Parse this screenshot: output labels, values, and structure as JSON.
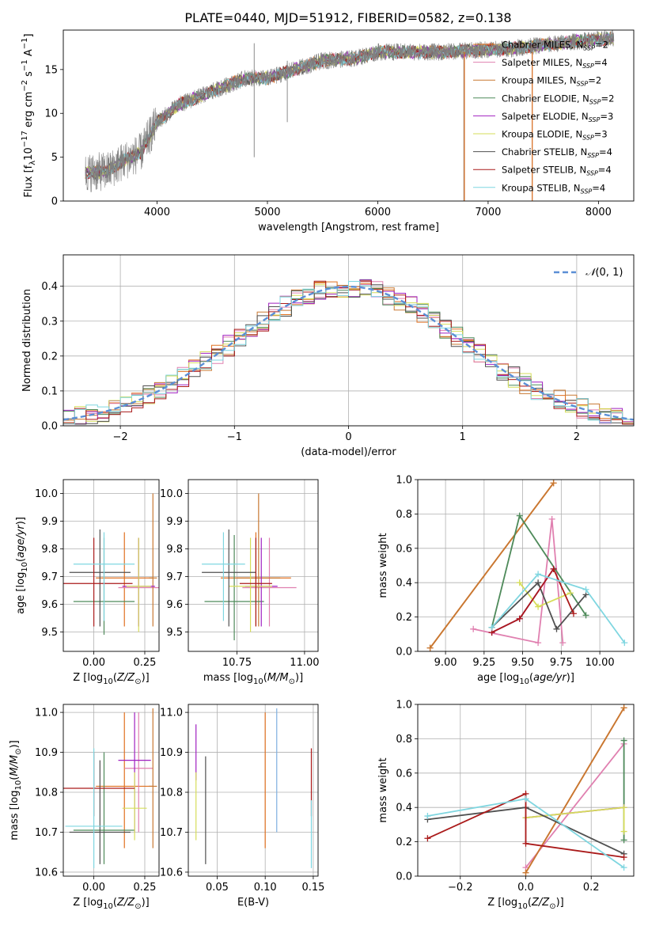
{
  "figure_title": "PLATE=0440, MJD=51912, FIBERID=0582, z=0.138",
  "colors": {
    "grey": "#808080",
    "orange": "#e07020",
    "pink": "#e080b0",
    "copper": "#c87832",
    "green": "#4e8a5a",
    "purple": "#a020c0",
    "yellow": "#d6dd5a",
    "dark": "#505050",
    "red": "#aa1a1a",
    "cyan": "#7fd6e0",
    "gaussian": "#5b8fd6",
    "grid": "#b0b0b0"
  },
  "legend_models": [
    {
      "label": "Chabrier MILES, N",
      "sub": "SSP",
      "tail": "=2",
      "color": "#e07020"
    },
    {
      "label": "Salpeter MILES, N",
      "sub": "SSP",
      "tail": "=4",
      "color": "#e080b0"
    },
    {
      "label": "Kroupa MILES, N",
      "sub": "SSP",
      "tail": "=2",
      "color": "#c87832"
    },
    {
      "label": "Chabrier ELODIE, N",
      "sub": "SSP",
      "tail": "=2",
      "color": "#4e8a5a"
    },
    {
      "label": "Salpeter ELODIE, N",
      "sub": "SSP",
      "tail": "=3",
      "color": "#a020c0"
    },
    {
      "label": "Kroupa ELODIE, N",
      "sub": "SSP",
      "tail": "=3",
      "color": "#d6dd5a"
    },
    {
      "label": "Chabrier STELIB, N",
      "sub": "SSP",
      "tail": "=4",
      "color": "#505050"
    },
    {
      "label": "Salpeter STELIB, N",
      "sub": "SSP",
      "tail": "=4",
      "color": "#aa1a1a"
    },
    {
      "label": "Kroupa STELIB, N",
      "sub": "SSP",
      "tail": "=4",
      "color": "#7fd6e0"
    }
  ],
  "chart_data": [
    {
      "id": "spectrum",
      "type": "line",
      "xlabel": "wavelength [Angstrom, rest frame]",
      "ylabel_main": "Flux [f",
      "ylabel_sub": "λ",
      "ylabel_mid": "10",
      "ylabel_sup1": "−17",
      "ylabel_tail": " erg cm",
      "ylabel_sup2": "−2",
      "ylabel_tail2": " s",
      "ylabel_sup3": "−1",
      "ylabel_tail3": " A",
      "ylabel_sup4": "−1",
      "ylabel_end": "]",
      "xlim": [
        3150,
        8320
      ],
      "ylim": [
        0,
        19.5
      ],
      "xticks": [
        4000,
        5000,
        6000,
        7000,
        8000
      ],
      "yticks": [
        0,
        5,
        10,
        15
      ],
      "data_range": [
        3350,
        8140
      ],
      "continuum": [
        [
          3350,
          3.2
        ],
        [
          3550,
          3.4
        ],
        [
          3700,
          4.6
        ],
        [
          3850,
          5.5
        ],
        [
          4000,
          9.0
        ],
        [
          4200,
          11.0
        ],
        [
          4500,
          12.5
        ],
        [
          4800,
          14.0
        ],
        [
          5000,
          14.0
        ],
        [
          5200,
          14.8
        ],
        [
          5500,
          16.0
        ],
        [
          5800,
          16.3
        ],
        [
          6000,
          17.0
        ],
        [
          6300,
          17.0
        ],
        [
          6600,
          17.0
        ],
        [
          6900,
          17.2
        ],
        [
          7200,
          17.4
        ],
        [
          7500,
          17.8
        ],
        [
          7800,
          18.2
        ],
        [
          8140,
          18.6
        ]
      ],
      "vertical_spikes": [
        [
          4880,
          5,
          18
        ],
        [
          5180,
          9,
          16
        ],
        [
          6780,
          0,
          17
        ],
        [
          7400,
          0,
          17
        ]
      ],
      "legend_position": "upper-right"
    },
    {
      "id": "residuals",
      "type": "histogram",
      "xlabel": "(data-model)/error",
      "ylabel": "Normed distribution",
      "xlim": [
        -2.5,
        2.5
      ],
      "ylim": [
        0,
        0.49
      ],
      "xticks": [
        -2,
        -1,
        0,
        1,
        2
      ],
      "yticks": [
        0.0,
        0.1,
        0.2,
        0.3,
        0.4
      ],
      "bin_width": 0.1,
      "gaussian_label": "N(0, 1)",
      "gaussian_italic": "𝒩",
      "gaussian_tail": "(0, 1)",
      "legend_position": "upper-right",
      "grid": true
    },
    {
      "id": "z_age",
      "type": "errorbar",
      "xlabel_main": "Z [log",
      "xlabel_sub": "10",
      "xlabel_tail": "(Z/Z",
      "xlabel_sub2": "⊙",
      "xlabel_end": ")]",
      "ylabel_main": "age  [log",
      "ylabel_sub": "10",
      "ylabel_tail": "(age/yr)]",
      "xlim": [
        -0.15,
        0.32
      ],
      "ylim": [
        9.43,
        10.05
      ],
      "xticks": [
        0.0,
        0.25
      ],
      "yticks": [
        9.5,
        9.6,
        9.7,
        9.8,
        9.9,
        10.0
      ],
      "points": [
        {
          "x": 0.15,
          "y": 9.695,
          "xe": 0.14,
          "ylo": 9.52,
          "yhi": 9.86,
          "color": "#e07020"
        },
        {
          "x": 0.22,
          "y": 9.66,
          "xe": 0.1,
          "ylo": 9.52,
          "yhi": 9.84,
          "color": "#e080b0"
        },
        {
          "x": 0.29,
          "y": 9.695,
          "xe": 0.02,
          "ylo": 9.52,
          "yhi": 10.0,
          "color": "#c87832"
        },
        {
          "x": 0.05,
          "y": 9.61,
          "xe": 0.15,
          "ylo": 9.49,
          "yhi": 9.84,
          "color": "#4e8a5a"
        },
        {
          "x": 0.22,
          "y": 9.665,
          "xe": 0.08,
          "ylo": 9.52,
          "yhi": 9.84,
          "color": "#a020c0"
        },
        {
          "x": 0.22,
          "y": 9.665,
          "xe": 0.06,
          "ylo": 9.5,
          "yhi": 9.84,
          "color": "#d6dd5a"
        },
        {
          "x": 0.03,
          "y": 9.715,
          "xe": 0.15,
          "ylo": 9.52,
          "yhi": 9.87,
          "color": "#505050"
        },
        {
          "x": 0.0,
          "y": 9.675,
          "xe": 0.19,
          "ylo": 9.52,
          "yhi": 9.84,
          "color": "#aa1a1a"
        },
        {
          "x": 0.05,
          "y": 9.745,
          "xe": 0.15,
          "ylo": 9.54,
          "yhi": 9.86,
          "color": "#7fd6e0"
        }
      ]
    },
    {
      "id": "mass_age",
      "type": "errorbar",
      "xlabel_main": "mass [log",
      "xlabel_sub": "10",
      "xlabel_tail": "(M/M",
      "xlabel_sub2": "⊙",
      "xlabel_end": ")]",
      "xlim": [
        10.57,
        11.05
      ],
      "ylim": [
        9.43,
        10.05
      ],
      "xticks": [
        10.75,
        11.0
      ],
      "yticks": [
        9.5,
        9.6,
        9.7,
        9.8,
        9.9,
        10.0
      ],
      "points": [
        {
          "x": 10.82,
          "y": 9.695,
          "xe": 0.13,
          "ylo": 9.52,
          "yhi": 9.86,
          "color": "#e07020"
        },
        {
          "x": 10.87,
          "y": 9.66,
          "xe": 0.1,
          "ylo": 9.52,
          "yhi": 9.84,
          "color": "#e080b0"
        },
        {
          "x": 10.83,
          "y": 9.695,
          "xe": 0.08,
          "ylo": 9.52,
          "yhi": 10.0,
          "color": "#c87832"
        },
        {
          "x": 10.74,
          "y": 9.61,
          "xe": 0.11,
          "ylo": 9.47,
          "yhi": 9.85,
          "color": "#4e8a5a"
        },
        {
          "x": 10.84,
          "y": 9.665,
          "xe": 0.06,
          "ylo": 9.52,
          "yhi": 9.84,
          "color": "#a020c0"
        },
        {
          "x": 10.8,
          "y": 9.665,
          "xe": 0.08,
          "ylo": 9.5,
          "yhi": 9.84,
          "color": "#d6dd5a"
        },
        {
          "x": 10.72,
          "y": 9.715,
          "xe": 0.1,
          "ylo": 9.52,
          "yhi": 9.87,
          "color": "#505050"
        },
        {
          "x": 10.82,
          "y": 9.675,
          "xe": 0.06,
          "ylo": 9.52,
          "yhi": 9.84,
          "color": "#aa1a1a"
        },
        {
          "x": 10.7,
          "y": 9.745,
          "xe": 0.08,
          "ylo": 9.54,
          "yhi": 9.86,
          "color": "#7fd6e0"
        }
      ]
    },
    {
      "id": "age_weight",
      "type": "line",
      "xlabel_main": "age  [log",
      "xlabel_sub": "10",
      "xlabel_tail": "(age/yr)]",
      "ylabel": "mass weight",
      "xlim": [
        8.82,
        10.22
      ],
      "ylim": [
        0,
        1.0
      ],
      "xticks": [
        9.0,
        9.25,
        9.5,
        9.75,
        10.0
      ],
      "yticks": [
        0.0,
        0.2,
        0.4,
        0.6,
        0.8,
        1.0
      ],
      "series": [
        {
          "color": "#e07020",
          "x": [
            8.9,
            9.7
          ],
          "y": [
            0.02,
            0.98
          ]
        },
        {
          "color": "#e080b0",
          "x": [
            9.18,
            9.6,
            9.69,
            9.76
          ],
          "y": [
            0.13,
            0.05,
            0.77,
            0.05
          ]
        },
        {
          "color": "#c87832",
          "x": [
            8.9,
            9.7
          ],
          "y": [
            0.02,
            0.98
          ]
        },
        {
          "color": "#4e8a5a",
          "x": [
            9.3,
            9.48,
            9.91
          ],
          "y": [
            0.14,
            0.79,
            0.21
          ]
        },
        {
          "color": "#a020c0",
          "x": [
            9.3,
            9.48,
            9.7
          ],
          "y": [
            0.11,
            0.19,
            0.48
          ]
        },
        {
          "color": "#d6dd5a",
          "x": [
            9.48,
            9.6,
            9.81
          ],
          "y": [
            0.4,
            0.26,
            0.34
          ]
        },
        {
          "color": "#505050",
          "x": [
            9.3,
            9.6,
            9.72,
            9.91
          ],
          "y": [
            0.14,
            0.4,
            0.13,
            0.33
          ]
        },
        {
          "color": "#aa1a1a",
          "x": [
            9.3,
            9.48,
            9.7,
            9.83
          ],
          "y": [
            0.11,
            0.19,
            0.48,
            0.22
          ]
        },
        {
          "color": "#7fd6e0",
          "x": [
            9.3,
            9.6,
            9.91,
            10.16
          ],
          "y": [
            0.14,
            0.45,
            0.36,
            0.05
          ]
        }
      ],
      "grid": true
    },
    {
      "id": "z_mass",
      "type": "errorbar",
      "xlabel_main": "Z [log",
      "xlabel_sub": "10",
      "xlabel_tail": "(Z/Z",
      "xlabel_sub2": "⊙",
      "xlabel_end": ")]",
      "ylabel_main": "mass [log",
      "ylabel_sub": "10",
      "ylabel_tail": "(M/M",
      "ylabel_sub2": "⊙",
      "ylabel_end": ")]",
      "xlim": [
        -0.15,
        0.32
      ],
      "ylim": [
        10.59,
        11.02
      ],
      "xticks": [
        0.0,
        0.25
      ],
      "yticks": [
        10.6,
        10.7,
        10.8,
        10.9,
        11.0
      ],
      "points": [
        {
          "x": 0.15,
          "y": 10.815,
          "xe": 0.14,
          "ylo": 10.66,
          "yhi": 11.0,
          "color": "#e07020"
        },
        {
          "x": 0.22,
          "y": 10.86,
          "xe": 0.07,
          "ylo": 10.7,
          "yhi": 11.0,
          "color": "#e080b0"
        },
        {
          "x": 0.29,
          "y": 10.815,
          "xe": 0.02,
          "ylo": 10.66,
          "yhi": 11.01,
          "color": "#c87832"
        },
        {
          "x": 0.05,
          "y": 10.705,
          "xe": 0.15,
          "ylo": 10.62,
          "yhi": 10.9,
          "color": "#4e8a5a"
        },
        {
          "x": 0.2,
          "y": 10.88,
          "xe": 0.08,
          "ylo": 10.7,
          "yhi": 11.0,
          "color": "#a020c0"
        },
        {
          "x": 0.2,
          "y": 10.76,
          "xe": 0.06,
          "ylo": 10.68,
          "yhi": 10.85,
          "color": "#d6dd5a"
        },
        {
          "x": 0.03,
          "y": 10.7,
          "xe": 0.15,
          "ylo": 10.62,
          "yhi": 10.88,
          "color": "#505050"
        },
        {
          "x": 0.0,
          "y": 10.81,
          "xe": 0.2,
          "ylo": 10.74,
          "yhi": 10.9,
          "color": "#aa1a1a"
        },
        {
          "x": 0.0,
          "y": 10.715,
          "xe": 0.14,
          "ylo": 10.61,
          "yhi": 10.91,
          "color": "#7fd6e0"
        }
      ]
    },
    {
      "id": "ebv_mass",
      "type": "errorbar",
      "xlabel": "E(B-V)",
      "xlim": [
        0.02,
        0.155
      ],
      "ylim": [
        10.59,
        11.02
      ],
      "xticks": [
        0.05,
        0.1,
        0.15
      ],
      "yticks": [
        10.6,
        10.7,
        10.8,
        10.9,
        11.0
      ],
      "points": [
        {
          "x": 0.1,
          "y": 10.82,
          "xe": 0.0,
          "ylo": 10.66,
          "yhi": 11.0,
          "color": "#e07020"
        },
        {
          "x": 0.112,
          "y": 10.86,
          "xe": 0.0,
          "ylo": 10.7,
          "yhi": 11.01,
          "color": "#7fb0e0"
        },
        {
          "x": 0.028,
          "y": 10.9,
          "xe": 0.0,
          "ylo": 10.83,
          "yhi": 10.97,
          "color": "#a020c0"
        },
        {
          "x": 0.028,
          "y": 10.76,
          "xe": 0.0,
          "ylo": 10.68,
          "yhi": 10.85,
          "color": "#d6dd5a"
        },
        {
          "x": 0.038,
          "y": 10.75,
          "xe": 0.0,
          "ylo": 10.62,
          "yhi": 10.89,
          "color": "#505050"
        },
        {
          "x": 0.148,
          "y": 10.82,
          "xe": 0.0,
          "ylo": 10.74,
          "yhi": 10.91,
          "color": "#aa1a1a"
        },
        {
          "x": 0.148,
          "y": 10.7,
          "xe": 0.0,
          "ylo": 10.61,
          "yhi": 10.78,
          "color": "#7fd6e0"
        }
      ]
    },
    {
      "id": "z_weight",
      "type": "line",
      "xlabel_main": "Z [log",
      "xlabel_sub": "10",
      "xlabel_tail": "(Z/Z",
      "xlabel_sub2": "⊙",
      "xlabel_end": ")]",
      "ylabel": "mass weight",
      "xlim": [
        -0.33,
        0.33
      ],
      "ylim": [
        0,
        1.0
      ],
      "xticks": [
        -0.2,
        0.0,
        0.2
      ],
      "yticks": [
        0.0,
        0.2,
        0.4,
        0.6,
        0.8,
        1.0
      ],
      "series": [
        {
          "color": "#e07020",
          "x": [
            0.0,
            0.3
          ],
          "y": [
            0.02,
            0.98
          ]
        },
        {
          "color": "#e080b0",
          "x": [
            0.0,
            0.3
          ],
          "y": [
            0.05,
            0.77
          ]
        },
        {
          "color": "#c87832",
          "x": [
            0.0,
            0.3
          ],
          "y": [
            0.02,
            0.98
          ]
        },
        {
          "color": "#4e8a5a",
          "x": [
            0.3,
            0.3
          ],
          "y": [
            0.21,
            0.79
          ]
        },
        {
          "color": "#a020c0",
          "x": [
            0.0,
            0.3
          ],
          "y": [
            0.34,
            0.4
          ]
        },
        {
          "color": "#d6dd5a",
          "x": [
            0.0,
            0.3,
            0.3
          ],
          "y": [
            0.34,
            0.4,
            0.26
          ]
        },
        {
          "color": "#505050",
          "x": [
            -0.3,
            0.0,
            0.3
          ],
          "y": [
            0.33,
            0.4,
            0.13
          ]
        },
        {
          "color": "#aa1a1a",
          "x": [
            -0.3,
            0.0,
            0.0,
            0.3
          ],
          "y": [
            0.22,
            0.48,
            0.19,
            0.11
          ]
        },
        {
          "color": "#7fd6e0",
          "x": [
            -0.3,
            0.0,
            0.3
          ],
          "y": [
            0.35,
            0.45,
            0.05
          ]
        }
      ],
      "grid": true
    }
  ]
}
